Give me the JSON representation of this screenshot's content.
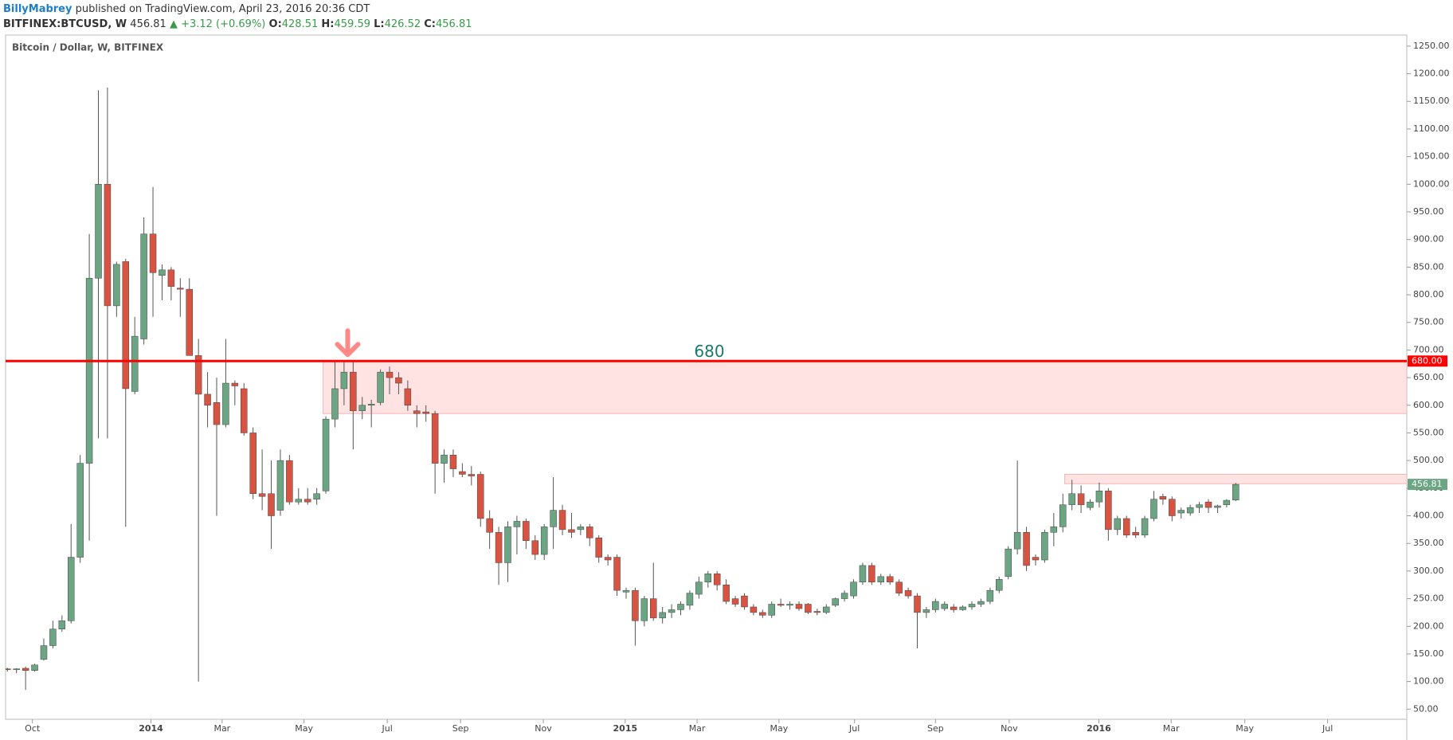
{
  "header": {
    "author": "BillyMabrey",
    "published": "published on TradingView.com, April 23, 2016 20:36 CDT",
    "symbol": "BITFINEX:BTCUSD, W",
    "last": "456.81",
    "change": "▲ +3.12 (+0.69%)",
    "o_label": "O:",
    "o": "428.51",
    "h_label": "H:",
    "h": "459.59",
    "l_label": "L:",
    "l": "426.52",
    "c_label": "C:",
    "c": "456.81"
  },
  "chart_data": {
    "type": "candlestick",
    "title": "Bitcoin / Dollar, W, BITFINEX",
    "up_color": "#6ba583",
    "down_color": "#d75442",
    "open": [
      123,
      122,
      124,
      120,
      140,
      165,
      195,
      210,
      325,
      495,
      830,
      1000,
      780,
      860,
      625,
      720,
      910,
      835,
      845,
      812,
      810,
      690,
      620,
      605,
      565,
      640,
      630,
      550,
      440,
      440,
      410,
      500,
      425,
      430,
      430,
      445,
      575,
      630,
      660,
      590,
      600,
      605,
      660,
      650,
      630,
      590,
      588,
      585,
      495,
      510,
      480,
      475,
      475,
      395,
      370,
      315,
      380,
      390,
      355,
      330,
      380,
      410,
      375,
      375,
      380,
      360,
      325,
      325,
      262,
      265,
      210,
      250,
      215,
      225,
      230,
      238,
      258,
      280,
      295,
      275,
      250,
      255,
      235,
      225,
      220,
      240,
      238,
      240,
      240,
      227,
      225,
      238,
      250,
      255,
      280,
      310,
      280,
      290,
      280,
      265,
      255,
      225,
      230,
      232,
      235,
      230,
      235,
      240,
      245,
      265,
      290,
      340,
      370,
      325,
      320,
      370,
      380,
      420,
      440,
      415,
      425,
      445,
      375,
      395,
      370,
      365,
      395,
      435,
      430,
      405,
      405,
      415,
      425,
      415,
      420,
      428.51
    ],
    "high": [
      125,
      124,
      127,
      132,
      178,
      210,
      220,
      385,
      510,
      910,
      1170,
      1175,
      860,
      865,
      760,
      940,
      995,
      855,
      850,
      830,
      830,
      720,
      660,
      650,
      720,
      645,
      640,
      560,
      520,
      500,
      520,
      510,
      450,
      450,
      450,
      580,
      680,
      680,
      680,
      615,
      610,
      665,
      670,
      660,
      645,
      600,
      600,
      590,
      520,
      520,
      495,
      490,
      480,
      410,
      380,
      390,
      400,
      395,
      365,
      385,
      470,
      420,
      405,
      385,
      385,
      365,
      330,
      330,
      270,
      270,
      255,
      315,
      235,
      240,
      245,
      265,
      290,
      300,
      300,
      285,
      255,
      260,
      240,
      230,
      245,
      250,
      245,
      245,
      242,
      232,
      240,
      252,
      265,
      285,
      315,
      315,
      295,
      295,
      285,
      270,
      260,
      235,
      250,
      245,
      240,
      238,
      245,
      250,
      270,
      290,
      345,
      500,
      380,
      330,
      375,
      405,
      440,
      465,
      455,
      430,
      460,
      450,
      400,
      400,
      380,
      400,
      445,
      440,
      435,
      415,
      420,
      425,
      430,
      420,
      430,
      459.59
    ],
    "low": [
      118,
      115,
      85,
      118,
      138,
      160,
      190,
      205,
      315,
      355,
      540,
      540,
      760,
      380,
      620,
      710,
      760,
      790,
      790,
      760,
      690,
      100,
      560,
      400,
      560,
      600,
      545,
      430,
      410,
      340,
      400,
      420,
      420,
      420,
      420,
      440,
      560,
      600,
      520,
      575,
      560,
      600,
      620,
      620,
      590,
      560,
      570,
      440,
      460,
      470,
      470,
      455,
      380,
      340,
      275,
      280,
      330,
      340,
      320,
      320,
      340,
      365,
      360,
      365,
      345,
      315,
      310,
      255,
      250,
      165,
      200,
      210,
      205,
      215,
      220,
      230,
      250,
      270,
      265,
      240,
      235,
      230,
      220,
      215,
      215,
      235,
      230,
      228,
      222,
      220,
      222,
      235,
      245,
      250,
      275,
      275,
      275,
      275,
      255,
      250,
      160,
      215,
      225,
      228,
      225,
      228,
      230,
      235,
      240,
      260,
      285,
      330,
      300,
      310,
      315,
      345,
      370,
      410,
      405,
      410,
      415,
      355,
      365,
      360,
      360,
      360,
      390,
      420,
      390,
      395,
      400,
      405,
      405,
      405,
      415,
      426.52
    ],
    "close": [
      122,
      123,
      120,
      130,
      165,
      195,
      210,
      325,
      495,
      830,
      1000,
      780,
      855,
      630,
      725,
      910,
      840,
      845,
      815,
      810,
      690,
      620,
      600,
      565,
      640,
      635,
      550,
      440,
      435,
      400,
      500,
      425,
      430,
      425,
      440,
      575,
      630,
      660,
      590,
      600,
      602,
      660,
      650,
      640,
      600,
      585,
      585,
      495,
      510,
      485,
      475,
      472,
      395,
      370,
      315,
      380,
      390,
      355,
      330,
      380,
      410,
      375,
      370,
      380,
      360,
      325,
      320,
      265,
      265,
      210,
      250,
      215,
      225,
      230,
      240,
      260,
      280,
      295,
      275,
      245,
      240,
      235,
      225,
      220,
      240,
      238,
      240,
      232,
      225,
      225,
      235,
      250,
      260,
      280,
      310,
      280,
      290,
      280,
      260,
      255,
      225,
      230,
      245,
      240,
      230,
      235,
      240,
      245,
      265,
      285,
      340,
      370,
      310,
      320,
      370,
      380,
      420,
      440,
      420,
      425,
      445,
      375,
      395,
      365,
      365,
      395,
      430,
      430,
      400,
      410,
      415,
      420,
      415,
      418,
      428,
      456.81
    ],
    "xlim": [
      -0.2,
      153.8
    ],
    "xticks": [
      {
        "value": 2.75,
        "label": "Oct"
      },
      {
        "value": 15.78,
        "label": "2014"
      },
      {
        "value": 23.6,
        "label": "Mar"
      },
      {
        "value": 32.6,
        "label": "May"
      },
      {
        "value": 41.75,
        "label": "Jul"
      },
      {
        "value": 49.8,
        "label": "Sep"
      },
      {
        "value": 58.9,
        "label": "Nov"
      },
      {
        "value": 67.9,
        "label": "2015"
      },
      {
        "value": 75.8,
        "label": "Mar"
      },
      {
        "value": 84.8,
        "label": "May"
      },
      {
        "value": 93.1,
        "label": "Jul"
      },
      {
        "value": 102,
        "label": "Sep"
      },
      {
        "value": 110.1,
        "label": "Nov"
      },
      {
        "value": 119.96,
        "label": "2016"
      },
      {
        "value": 127.9,
        "label": "Mar"
      },
      {
        "value": 136,
        "label": "May"
      },
      {
        "value": 145.1,
        "label": "Jul"
      }
    ],
    "ylim": [
      31.7,
      1270
    ],
    "yticks": [
      {
        "value": 50,
        "label": "50.00"
      },
      {
        "value": 100,
        "label": "100.00"
      },
      {
        "value": 150,
        "label": "150.00"
      },
      {
        "value": 200,
        "label": "200.00"
      },
      {
        "value": 250,
        "label": "250.00"
      },
      {
        "value": 300,
        "label": "300.00"
      },
      {
        "value": 350,
        "label": "350.00"
      },
      {
        "value": 400,
        "label": "400.00"
      },
      {
        "value": 450,
        "label": "450.00"
      },
      {
        "value": 500,
        "label": "500.00"
      },
      {
        "value": 550,
        "label": "550.00"
      },
      {
        "value": 600,
        "label": "600.00"
      },
      {
        "value": 650,
        "label": "650.00"
      },
      {
        "value": 700,
        "label": "700.00"
      },
      {
        "value": 750,
        "label": "750.00"
      },
      {
        "value": 800,
        "label": "800.00"
      },
      {
        "value": 850,
        "label": "850.00"
      },
      {
        "value": 900,
        "label": "900.00"
      },
      {
        "value": 950,
        "label": "950.00"
      },
      {
        "value": 1000,
        "label": "1000.00"
      },
      {
        "value": 1050,
        "label": "1050.00"
      },
      {
        "value": 1100,
        "label": "1100.00"
      },
      {
        "value": 1150,
        "label": "1150.00"
      },
      {
        "value": 1200,
        "label": "1200.00"
      },
      {
        "value": 1250,
        "label": "1250.00"
      }
    ],
    "hline": {
      "value": 680,
      "label": "680",
      "price_label": "680.00",
      "color": "#f00"
    },
    "last_price": {
      "value": 456.81,
      "label": "456.81",
      "color": "#6ba583"
    },
    "zones": [
      {
        "x": [
          34.7,
          153.8
        ],
        "y": [
          585,
          680
        ],
        "color": "#ffe3e3"
      },
      {
        "x": [
          116.2,
          153.8
        ],
        "y": [
          458,
          475
        ],
        "color": "#ffe3e3"
      }
    ]
  }
}
